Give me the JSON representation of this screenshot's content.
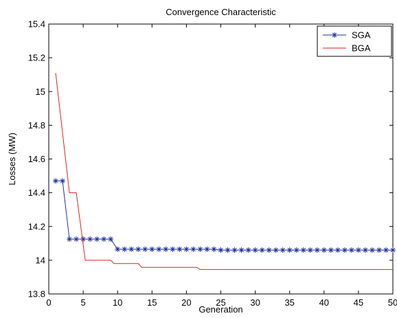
{
  "chart_data": {
    "type": "line",
    "title": "Convergence Characteristic",
    "xlabel": "Generation",
    "ylabel": "Losses (MW)",
    "xlim": [
      0,
      50
    ],
    "ylim": [
      13.8,
      15.4
    ],
    "xticks": [
      "0",
      "5",
      "10",
      "15",
      "20",
      "25",
      "30",
      "35",
      "40",
      "45",
      "50"
    ],
    "yticks": [
      "13.8",
      "14",
      "14.2",
      "14.4",
      "14.6",
      "14.8",
      "15",
      "15.2",
      "15.4"
    ],
    "grid": false,
    "legend_position": "top-right",
    "series": [
      {
        "name": "SGA",
        "color": "#1f2fa0",
        "marker": "asterisk",
        "x": [
          1,
          2,
          3,
          4,
          5,
          6,
          7,
          8,
          9,
          10,
          11,
          12,
          13,
          14,
          15,
          16,
          17,
          18,
          19,
          20,
          21,
          22,
          23,
          24,
          25,
          26,
          27,
          28,
          29,
          30,
          31,
          32,
          33,
          34,
          35,
          36,
          37,
          38,
          39,
          40,
          41,
          42,
          43,
          44,
          45,
          46,
          47,
          48,
          49,
          50
        ],
        "values": [
          14.47,
          14.47,
          14.125,
          14.125,
          14.125,
          14.125,
          14.125,
          14.125,
          14.125,
          14.065,
          14.065,
          14.065,
          14.065,
          14.065,
          14.065,
          14.065,
          14.065,
          14.065,
          14.065,
          14.065,
          14.065,
          14.065,
          14.065,
          14.065,
          14.06,
          14.06,
          14.06,
          14.06,
          14.06,
          14.06,
          14.06,
          14.06,
          14.06,
          14.06,
          14.06,
          14.06,
          14.06,
          14.06,
          14.06,
          14.06,
          14.06,
          14.06,
          14.06,
          14.06,
          14.06,
          14.06,
          14.06,
          14.06,
          14.06,
          14.06
        ]
      },
      {
        "name": "BGA",
        "color": "#e0201f",
        "marker": "none",
        "x": [
          1,
          3,
          3,
          4,
          4,
          5.3,
          9,
          9.5,
          13,
          13.5,
          21.5,
          22,
          50
        ],
        "values": [
          15.11,
          14.4,
          14.4,
          14.4,
          14.4,
          14.0,
          14.0,
          13.98,
          13.98,
          13.958,
          13.958,
          13.945,
          13.945
        ]
      }
    ]
  }
}
